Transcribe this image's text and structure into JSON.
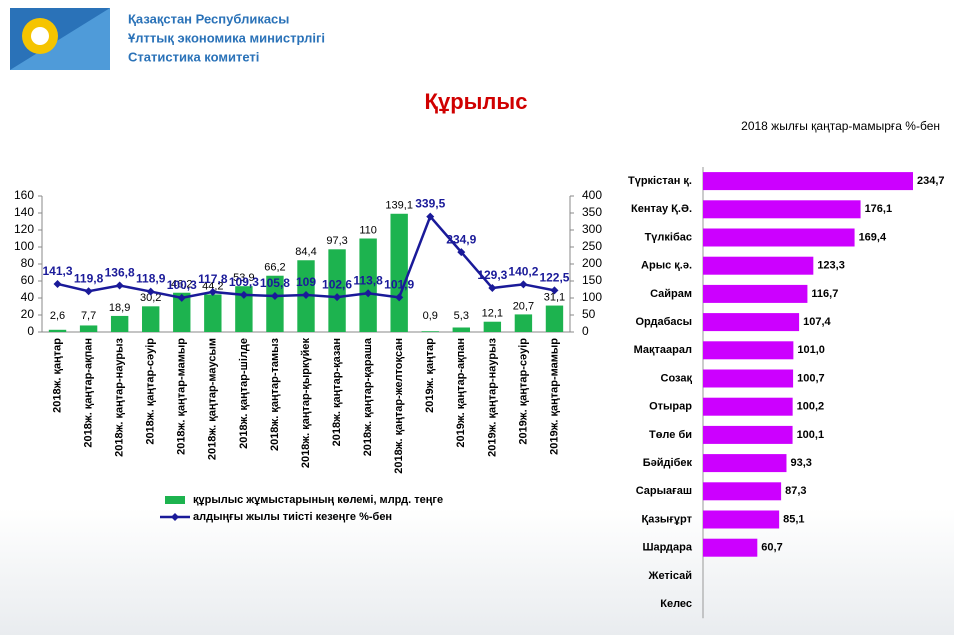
{
  "header": {
    "lines": [
      "Қазақстан Республикасы",
      "Ұлттық экономика министрлігі",
      "Статистика комитеті"
    ],
    "title": "Құрылыс"
  },
  "chart_data": [
    {
      "type": "combo",
      "categories": [
        "2018ж. қаңтар",
        "2018ж. қаңтар-ақпан",
        "2018ж. қаңтар-наурыз",
        "2018ж. қаңтар-сәуір",
        "2018ж. қаңтар-мамыр",
        "2018ж. қаңтар-маусым",
        "2018ж. қаңтар-шілде",
        "2018ж. қаңтар-тамыз",
        "2018ж. қаңтар-қыркүйек",
        "2018ж. қаңтар-қазан",
        "2018ж. қаңтар-қараша",
        "2018ж. қаңтар-желтоқсан",
        "2019ж. қаңтар",
        "2019ж. қаңтар-ақпан",
        "2019ж. қаңтар-наурыз",
        "2019ж. қаңтар-сәуір",
        "2019ж. қаңтар-мамыр"
      ],
      "series": [
        {
          "name": "құрылыс жұмыстарының көлемі, млрд. теңге",
          "type": "bar",
          "color": "#1db34f",
          "values": [
            2.6,
            7.7,
            18.9,
            30.2,
            46.2,
            44.2,
            53.9,
            66.2,
            84.4,
            97.3,
            110,
            139.1,
            0.9,
            5.3,
            12.1,
            20.7,
            31.1
          ],
          "value_labels": [
            "2,6",
            "7,7",
            "18,9",
            "30,2",
            "46,2",
            "44,2",
            "53,9",
            "66,2",
            "84,4",
            "97,3",
            "110",
            "139,1",
            "0,9",
            "5,3",
            "12,1",
            "20,7",
            "31,1"
          ]
        },
        {
          "name": "алдыңғы жылы тиісті кезеңге %-бен",
          "type": "line",
          "axis": "y2",
          "color": "#1a1a99",
          "values": [
            141.3,
            119.8,
            136.8,
            118.9,
            100.3,
            117.8,
            109.3,
            105.8,
            109,
            102.6,
            113.8,
            101.9,
            339.5,
            234.9,
            129.3,
            140.2,
            122.5
          ],
          "value_labels": [
            "141,3",
            "119,8",
            "136,8",
            "118,9",
            "100,3",
            "117,8",
            "109,3",
            "105,8",
            "109",
            "102,6",
            "113,8",
            "101,9",
            "339,5",
            "234,9",
            "129,3",
            "140,2",
            "122,5"
          ]
        }
      ],
      "ylim": [
        0,
        160
      ],
      "yticks": [
        0,
        20,
        40,
        60,
        80,
        100,
        120,
        140,
        160
      ],
      "y2lim": [
        0,
        400
      ],
      "y2ticks": [
        0,
        50,
        100,
        150,
        200,
        250,
        300,
        350,
        400
      ]
    },
    {
      "type": "hbar",
      "subtitle": "2018 жылғы қаңтар-мамырға %-бен",
      "color": "#cc00ff",
      "categories": [
        "Түркістан қ.",
        "Кентау Қ.Ә.",
        "Түлкібас",
        "Арыс қ.ә.",
        "Сайрам",
        "Ордабасы",
        "Мақтаарал",
        "Созақ",
        "Отырар",
        "Төле би",
        "Бәйдібек",
        "Сарыағаш",
        "Қазығұрт",
        "Шардара",
        "Жетісай",
        "Келес"
      ],
      "values": [
        234.7,
        176.1,
        169.4,
        123.3,
        116.7,
        107.4,
        101.0,
        100.7,
        100.2,
        100.1,
        93.3,
        87.3,
        85.1,
        60.7,
        null,
        null
      ],
      "value_labels": [
        "234,7",
        "176,1",
        "169,4",
        "123,3",
        "116,7",
        "107,4",
        "101,0",
        "100,7",
        "100,2",
        "100,1",
        "93,3",
        "87,3",
        "85,1",
        "60,7",
        null,
        null
      ]
    }
  ]
}
